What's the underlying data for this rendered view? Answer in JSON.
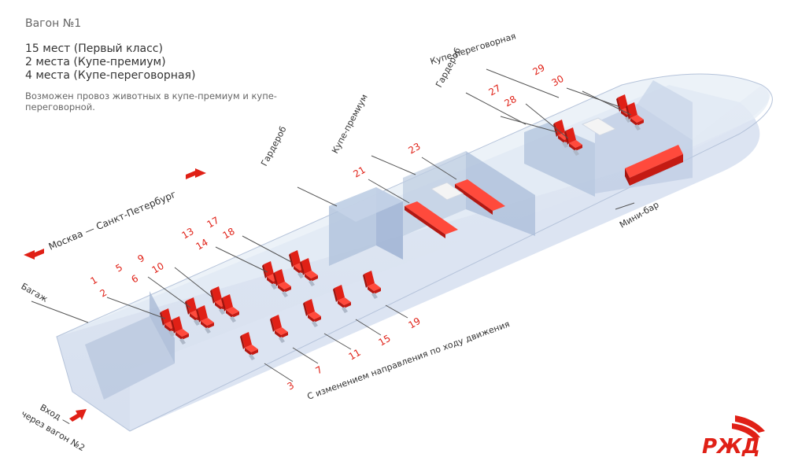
{
  "info": {
    "car_title": "Вагон №1",
    "capacity": [
      "15 мест (Первый класс)",
      "2 места (Купе-премиум)",
      "4 места (Купе-переговорная)"
    ],
    "note": "Возможен провоз животных в купе-премиум и купе-переговорной."
  },
  "labels": {
    "baggage": "Багаж",
    "wardrobe_1": "Гардероб",
    "premium": "Купе-премиум",
    "wardrobe_2": "Гардероб",
    "meeting": "Купе-переговорная",
    "minibar": "Мини-бар",
    "direction": "Москва — Санкт-Петербург",
    "entrance_1": "Вход —",
    "entrance_2": "через вагон №2",
    "reversing": "С изменением направления по ходу движения"
  },
  "seats": [
    "1",
    "2",
    "3",
    "5",
    "6",
    "7",
    "9",
    "10",
    "11",
    "13",
    "14",
    "15",
    "17",
    "18",
    "19",
    "21",
    "23",
    "27",
    "28",
    "29",
    "30"
  ],
  "colors": {
    "seat": "#e02016",
    "hull": "#c9d6ea",
    "label": "#333333"
  },
  "logo": {
    "text": "РЖД",
    "color": "#e02016"
  }
}
